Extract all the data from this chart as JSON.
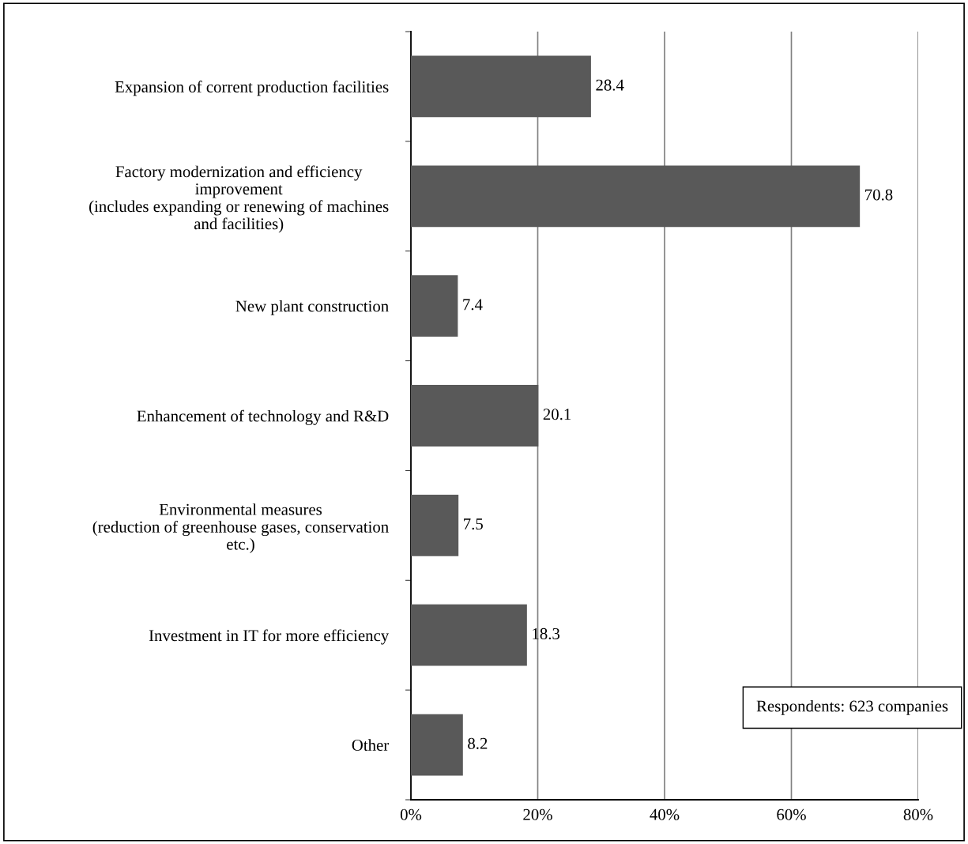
{
  "chart_data": {
    "type": "bar",
    "orientation": "horizontal",
    "categories": [
      "Expansion of corrent production facilities",
      "Factory modernization and efficiency\nimprovement\n(includes expanding or renewing of machines\nand facilities)",
      "New plant construction",
      "Enhancement of technology and R&D",
      "Environmental measures\n(reduction of greenhouse gases, conservation\netc.)",
      "Investment in IT for more efficiency",
      "Other"
    ],
    "values": [
      28.4,
      70.8,
      7.4,
      20.1,
      7.5,
      18.3,
      8.2
    ],
    "color": "#595959",
    "xlim": [
      0,
      80
    ],
    "xticks": [
      {
        "value": 0,
        "label": "0%"
      },
      {
        "value": 20,
        "label": "20%"
      },
      {
        "value": 40,
        "label": "40%"
      },
      {
        "value": 60,
        "label": "60%"
      },
      {
        "value": 80,
        "label": "80%"
      }
    ],
    "grid": "x",
    "legend": false,
    "data_labels": true,
    "annotations": [
      "Respondents: 623 companies"
    ]
  }
}
